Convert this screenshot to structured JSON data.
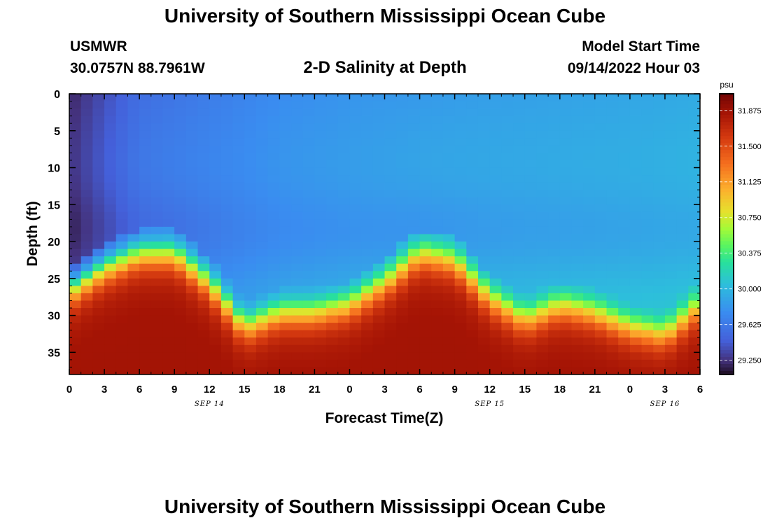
{
  "header": {
    "title": "University of Southern Mississippi Ocean Cube",
    "station": "USMWR",
    "coords": "30.0757N  88.7961W",
    "subtitle": "2-D Salinity at Depth",
    "model_label": "Model Start Time",
    "model_time": "09/14/2022 Hour 03"
  },
  "footer": {
    "title": "University of Southern Mississippi Ocean Cube"
  },
  "chart_data": {
    "type": "heatmap",
    "title": "2-D Salinity at Depth",
    "xlabel": "Forecast Time(Z)",
    "ylabel": "Depth (ft)",
    "x_ticks": [
      "0",
      "3",
      "6",
      "9",
      "12",
      "15",
      "18",
      "21",
      "0",
      "3",
      "6",
      "9",
      "12",
      "15",
      "18",
      "21",
      "0",
      "3",
      "6"
    ],
    "x_range_hours": [
      0,
      54
    ],
    "date_labels": [
      {
        "label": "SEP 14",
        "hour": 12
      },
      {
        "label": "SEP 15",
        "hour": 36
      },
      {
        "label": "SEP 16",
        "hour": 51
      }
    ],
    "y_ticks": [
      0,
      5,
      10,
      15,
      20,
      25,
      30,
      35
    ],
    "ylim": [
      38,
      0
    ],
    "colorbar": {
      "unit": "psu",
      "min": 29.1,
      "max": 32.05,
      "ticks": [
        "31.875",
        "31.500",
        "31.125",
        "30.750",
        "30.375",
        "30.000",
        "29.625",
        "29.250"
      ]
    },
    "halocline_depth_ft": [
      {
        "hour": 0,
        "depth": 27
      },
      {
        "hour": 3,
        "depth": 24
      },
      {
        "hour": 6,
        "depth": 22
      },
      {
        "hour": 9,
        "depth": 22
      },
      {
        "hour": 12,
        "depth": 26
      },
      {
        "hour": 15,
        "depth": 32
      },
      {
        "hour": 18,
        "depth": 30
      },
      {
        "hour": 21,
        "depth": 30
      },
      {
        "hour": 24,
        "depth": 29
      },
      {
        "hour": 27,
        "depth": 26
      },
      {
        "hour": 30,
        "depth": 22
      },
      {
        "hour": 33,
        "depth": 23
      },
      {
        "hour": 36,
        "depth": 28
      },
      {
        "hour": 39,
        "depth": 31
      },
      {
        "hour": 42,
        "depth": 29
      },
      {
        "hour": 45,
        "depth": 30
      },
      {
        "hour": 48,
        "depth": 32
      },
      {
        "hour": 51,
        "depth": 33
      },
      {
        "hour": 54,
        "depth": 29
      }
    ],
    "surface_salinity_psu": [
      {
        "hour": 0,
        "value": 29.2
      },
      {
        "hour": 6,
        "value": 29.55
      },
      {
        "hour": 12,
        "value": 29.65
      },
      {
        "hour": 18,
        "value": 29.75
      },
      {
        "hour": 24,
        "value": 29.8
      },
      {
        "hour": 30,
        "value": 29.83
      },
      {
        "hour": 36,
        "value": 29.86
      },
      {
        "hour": 42,
        "value": 29.88
      },
      {
        "hour": 48,
        "value": 29.9
      },
      {
        "hour": 54,
        "value": 29.93
      }
    ],
    "bottom_salinity_psu": 31.85
  }
}
